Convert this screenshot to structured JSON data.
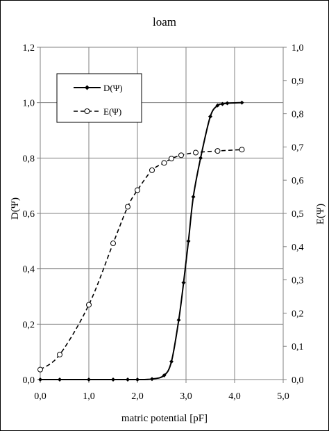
{
  "chart_data": {
    "type": "line",
    "title": "loam",
    "xlabel": "matric potential [pF]",
    "ylabel_left": "D(Ψ)",
    "ylabel_right": "E(Ψ)",
    "xlim": [
      0,
      5
    ],
    "ylim_left": [
      0,
      1.2
    ],
    "ylim_right": [
      0,
      1.0
    ],
    "xticks": [
      "0,0",
      "1,0",
      "2,0",
      "3,0",
      "4,0",
      "5,0"
    ],
    "yticks_left": [
      "0,0",
      "0,2",
      "0,4",
      "0,6",
      "0,8",
      "1,0",
      "1,2"
    ],
    "yticks_right": [
      "0,0",
      "0,1",
      "0,2",
      "0,3",
      "0,4",
      "0,5",
      "0,6",
      "0,7",
      "0,8",
      "0,9",
      "1,0"
    ],
    "grid": true,
    "legend_position": "top-left",
    "series": [
      {
        "name": "D(Ψ)",
        "axis": "left",
        "style": "solid",
        "marker": "filled-diamond",
        "x": [
          0.0,
          0.4,
          1.0,
          1.5,
          1.8,
          2.0,
          2.3,
          2.55,
          2.7,
          2.85,
          2.95,
          3.05,
          3.15,
          3.3,
          3.5,
          3.65,
          3.75,
          3.85,
          4.15
        ],
        "y": [
          0.0,
          0.0,
          0.0,
          0.0,
          0.0,
          0.0,
          0.002,
          0.015,
          0.065,
          0.215,
          0.35,
          0.5,
          0.66,
          0.8,
          0.95,
          0.99,
          0.995,
          0.998,
          1.0
        ]
      },
      {
        "name": "E(Ψ)",
        "axis": "right",
        "style": "dashed",
        "marker": "open-circle",
        "x": [
          0.0,
          0.4,
          1.0,
          1.5,
          1.8,
          2.0,
          2.3,
          2.55,
          2.7,
          2.9,
          3.2,
          3.65,
          4.15
        ],
        "y": [
          0.03,
          0.075,
          0.225,
          0.41,
          0.52,
          0.57,
          0.63,
          0.652,
          0.665,
          0.675,
          0.683,
          0.688,
          0.692
        ]
      }
    ]
  }
}
